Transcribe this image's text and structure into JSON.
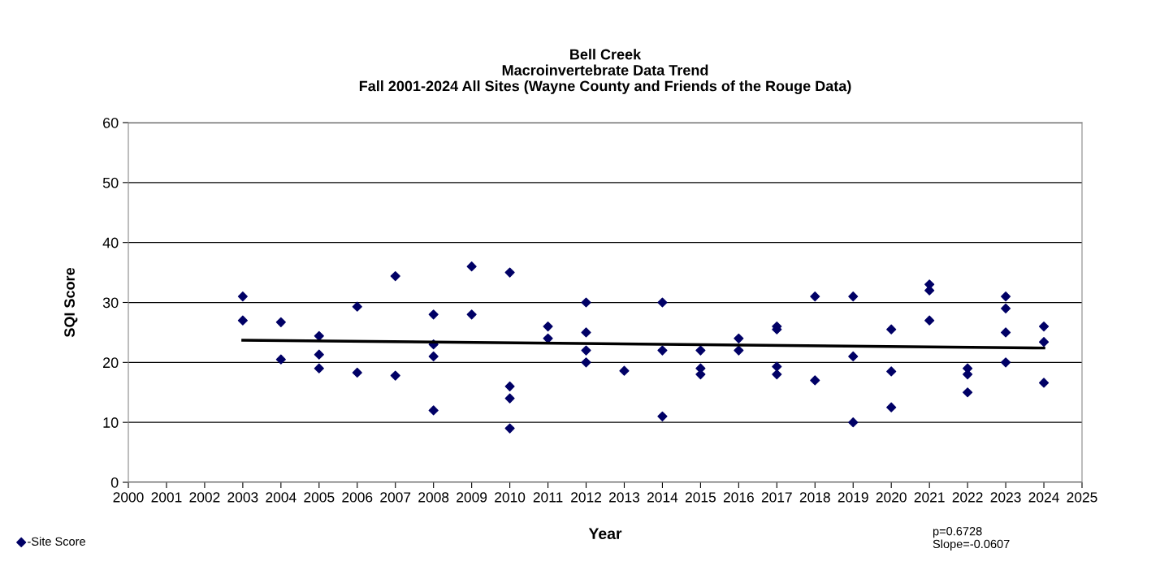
{
  "chart_data": {
    "type": "scatter",
    "title": "Bell Creek\nMacroinvertebrate Data Trend\nFall 2001-2024 All Sites (Wayne County and Friends of the Rouge Data)",
    "xlabel": "Year",
    "ylabel": "SQI Score",
    "xlim": [
      2000,
      2025
    ],
    "xticks": [
      2000,
      2001,
      2002,
      2003,
      2004,
      2005,
      2006,
      2007,
      2008,
      2009,
      2010,
      2011,
      2012,
      2013,
      2014,
      2015,
      2016,
      2017,
      2018,
      2019,
      2020,
      2021,
      2022,
      2023,
      2024,
      2025
    ],
    "ylim": [
      0,
      60
    ],
    "yticks": [
      0,
      10,
      20,
      30,
      40,
      50,
      60
    ],
    "grid": "y",
    "legend": "bottom left",
    "marker": "diamond",
    "series": [
      {
        "name": "-Site Score",
        "color": "#000066",
        "x": [
          2003,
          2003,
          2004,
          2004,
          2005,
          2005,
          2005,
          2006,
          2006,
          2007,
          2007,
          2008,
          2008,
          2008,
          2008,
          2009,
          2009,
          2010,
          2010,
          2010,
          2010,
          2011,
          2011,
          2012,
          2012,
          2012,
          2012,
          2013,
          2014,
          2014,
          2014,
          2015,
          2015,
          2015,
          2016,
          2016,
          2017,
          2017,
          2017,
          2017,
          2018,
          2018,
          2019,
          2019,
          2019,
          2020,
          2020,
          2020,
          2021,
          2021,
          2021,
          2022,
          2022,
          2022,
          2023,
          2023,
          2023,
          2023,
          2024,
          2024,
          2024
        ],
        "values": [
          31,
          27,
          26.7,
          20.5,
          24.4,
          21.3,
          19,
          29.3,
          18.3,
          34.4,
          17.8,
          28,
          23,
          21,
          12,
          36,
          28,
          35,
          16,
          14,
          9,
          26,
          24,
          30,
          25,
          22,
          20,
          18.6,
          30,
          22,
          11,
          22,
          19,
          18,
          24,
          22,
          26,
          25.5,
          19.3,
          18,
          31,
          17,
          31,
          21,
          10,
          25.5,
          18.5,
          12.5,
          33,
          32,
          27,
          19,
          18,
          15,
          31,
          29,
          25,
          20,
          26,
          23.4,
          16.6
        ]
      },
      {
        "type": "line",
        "marker": "none",
        "color": "#000000",
        "x": [
          2003,
          2024
        ],
        "values": [
          23.7,
          22.4
        ]
      }
    ],
    "annotations": [
      "p=0.6728\nSlope=-0.0607"
    ]
  }
}
